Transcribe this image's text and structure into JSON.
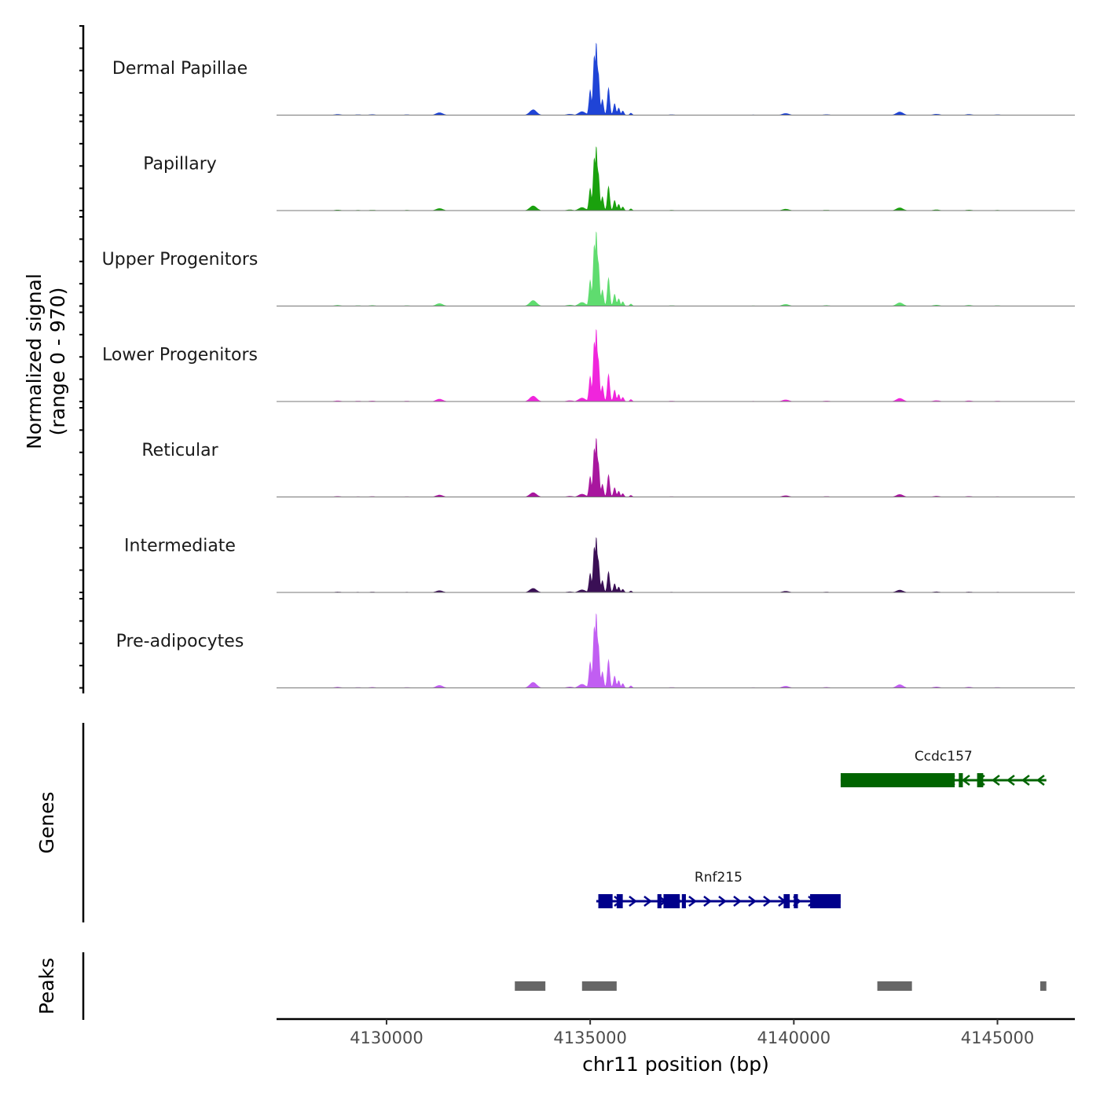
{
  "chart_data": {
    "type": "area",
    "title": "",
    "xlabel": "chr11 position (bp)",
    "xlim": [
      4127300,
      4146900
    ],
    "xticks": [
      4130000,
      4135000,
      4140000,
      4145000
    ],
    "xtick_labels": [
      "4130000",
      "4135000",
      "4140000",
      "4145000"
    ],
    "coverage": {
      "ylabel_line1": "Normalized signal",
      "ylabel_line2": "(range 0 - 970)",
      "ylim": [
        0,
        970
      ],
      "tracks": [
        {
          "name": "Dermal Papillae",
          "color": "#1f44d6",
          "scale": 0.97
        },
        {
          "name": "Papillary",
          "color": "#1aa10d",
          "scale": 0.86
        },
        {
          "name": "Upper Progenitors",
          "color": "#5fdc6f",
          "scale": 1.0
        },
        {
          "name": "Lower Progenitors",
          "color": "#f025dc",
          "scale": 0.97
        },
        {
          "name": "Reticular",
          "color": "#a8169e",
          "scale": 0.79
        },
        {
          "name": "Intermediate",
          "color": "#3a0f55",
          "scale": 0.74
        },
        {
          "name": "Pre-adipocytes",
          "color": "#c15ef2",
          "scale": 1.0
        }
      ],
      "peak_profile": [
        [
          4128800,
          0.012
        ],
        [
          4129300,
          0.008
        ],
        [
          4129650,
          0.01
        ],
        [
          4130500,
          0.008
        ],
        [
          4131300,
          0.035
        ],
        [
          4133600,
          0.075
        ],
        [
          4134500,
          0.015
        ],
        [
          4134800,
          0.05
        ],
        [
          4135000,
          0.35
        ],
        [
          4135100,
          0.82
        ],
        [
          4135150,
          1.0
        ],
        [
          4135200,
          0.6
        ],
        [
          4135300,
          0.22
        ],
        [
          4135450,
          0.38
        ],
        [
          4135600,
          0.16
        ],
        [
          4135700,
          0.1
        ],
        [
          4135800,
          0.06
        ],
        [
          4136000,
          0.03
        ],
        [
          4137000,
          0.008
        ],
        [
          4139000,
          0.006
        ],
        [
          4139800,
          0.025
        ],
        [
          4140800,
          0.01
        ],
        [
          4142600,
          0.045
        ],
        [
          4143500,
          0.015
        ],
        [
          4144300,
          0.012
        ],
        [
          4145000,
          0.008
        ]
      ]
    },
    "genes": {
      "ylabel": "Genes",
      "items": [
        {
          "name": "Rnf215",
          "start": 4135150,
          "end": 4141150,
          "strand": "+",
          "color": "#00008b",
          "exons": [
            [
              4135200,
              4135550
            ],
            [
              4135650,
              4135800
            ],
            [
              4136650,
              4136750
            ],
            [
              4136800,
              4137200
            ],
            [
              4137250,
              4137350
            ],
            [
              4139750,
              4139900
            ],
            [
              4140000,
              4140100
            ],
            [
              4140400,
              4140550
            ],
            [
              4140500,
              4141150
            ]
          ]
        },
        {
          "name": "Ccdc157",
          "start": 4141150,
          "end": 4146200,
          "strand": "-",
          "color": "#006400",
          "exons": [
            [
              4141150,
              4143950
            ],
            [
              4144050,
              4144150
            ],
            [
              4144500,
              4144650
            ]
          ]
        }
      ]
    },
    "peaks": {
      "ylabel": "Peaks",
      "color": "#666666",
      "regions": [
        [
          4133150,
          4133900
        ],
        [
          4134800,
          4135650
        ],
        [
          4142050,
          4142900
        ],
        [
          4146050,
          4146200
        ]
      ]
    }
  }
}
